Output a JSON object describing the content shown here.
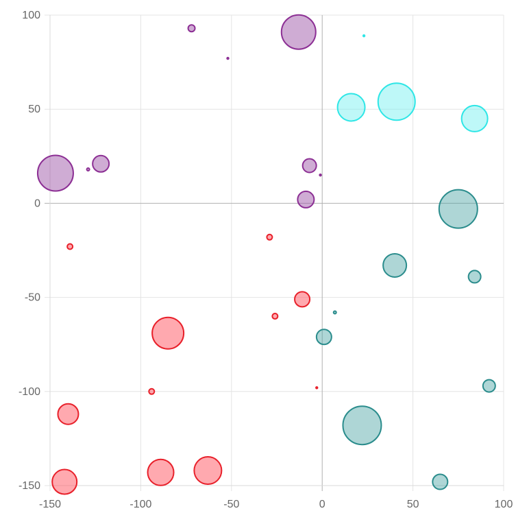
{
  "chart_data": {
    "type": "bubble",
    "title": "",
    "xlabel": "",
    "ylabel": "",
    "xlim": [
      -150,
      100
    ],
    "ylim": [
      -150,
      100
    ],
    "x_ticks": [
      -150,
      -100,
      -50,
      0,
      50,
      100
    ],
    "y_ticks": [
      100,
      50,
      0,
      -50,
      -100,
      -150
    ],
    "x_tick_labels": [
      "-150",
      "-100",
      "-50",
      "0",
      "50",
      "100"
    ],
    "y_tick_labels": [
      "100",
      "50",
      "0",
      "-50",
      "-100",
      "-150"
    ],
    "grid": true,
    "legend": "none",
    "series": [
      {
        "color": "#e8202a",
        "fill": "rgba(255, 99, 110, 0.55)",
        "points": [
          {
            "x": -139,
            "y": -23,
            "r": 4
          },
          {
            "x": -29,
            "y": -18,
            "r": 4
          },
          {
            "x": -11,
            "y": -51,
            "r": 11
          },
          {
            "x": -26,
            "y": -60,
            "r": 4
          },
          {
            "x": -85,
            "y": -69,
            "r": 23
          },
          {
            "x": -94,
            "y": -100,
            "r": 4
          },
          {
            "x": -3,
            "y": -98,
            "r": 1
          },
          {
            "x": -140,
            "y": -112,
            "r": 15
          },
          {
            "x": -89,
            "y": -143,
            "r": 19
          },
          {
            "x": -63,
            "y": -142,
            "r": 20
          },
          {
            "x": -142,
            "y": -148,
            "r": 18
          }
        ]
      },
      {
        "color": "#2a8c8c",
        "fill": "rgba(76, 163, 163, 0.45)",
        "points": [
          {
            "x": 75,
            "y": -3,
            "r": 28
          },
          {
            "x": 40,
            "y": -33,
            "r": 17
          },
          {
            "x": 84,
            "y": -39,
            "r": 9
          },
          {
            "x": 7,
            "y": -58,
            "r": 2
          },
          {
            "x": 1,
            "y": -71,
            "r": 11
          },
          {
            "x": 92,
            "y": -97,
            "r": 9
          },
          {
            "x": 22,
            "y": -118,
            "r": 28
          },
          {
            "x": 65,
            "y": -148,
            "r": 11
          }
        ]
      },
      {
        "color": "#2ee6e6",
        "fill": "rgba(110, 240, 240, 0.45)",
        "points": [
          {
            "x": 23,
            "y": 89,
            "r": 1
          },
          {
            "x": 16,
            "y": 51,
            "r": 20
          },
          {
            "x": 41,
            "y": 54,
            "r": 27
          },
          {
            "x": 84,
            "y": 45,
            "r": 19
          }
        ]
      },
      {
        "color": "#8c2f94",
        "fill": "rgba(160, 90, 170, 0.5)",
        "points": [
          {
            "x": -72,
            "y": 93,
            "r": 5
          },
          {
            "x": -13,
            "y": 91,
            "r": 25
          },
          {
            "x": -52,
            "y": 77,
            "r": 1
          },
          {
            "x": -147,
            "y": 16,
            "r": 26
          },
          {
            "x": -129,
            "y": 18,
            "r": 2
          },
          {
            "x": -122,
            "y": 21,
            "r": 12
          },
          {
            "x": -7,
            "y": 20,
            "r": 10
          },
          {
            "x": -1,
            "y": 15,
            "r": 1
          },
          {
            "x": -9,
            "y": 2,
            "r": 12
          }
        ]
      }
    ]
  }
}
